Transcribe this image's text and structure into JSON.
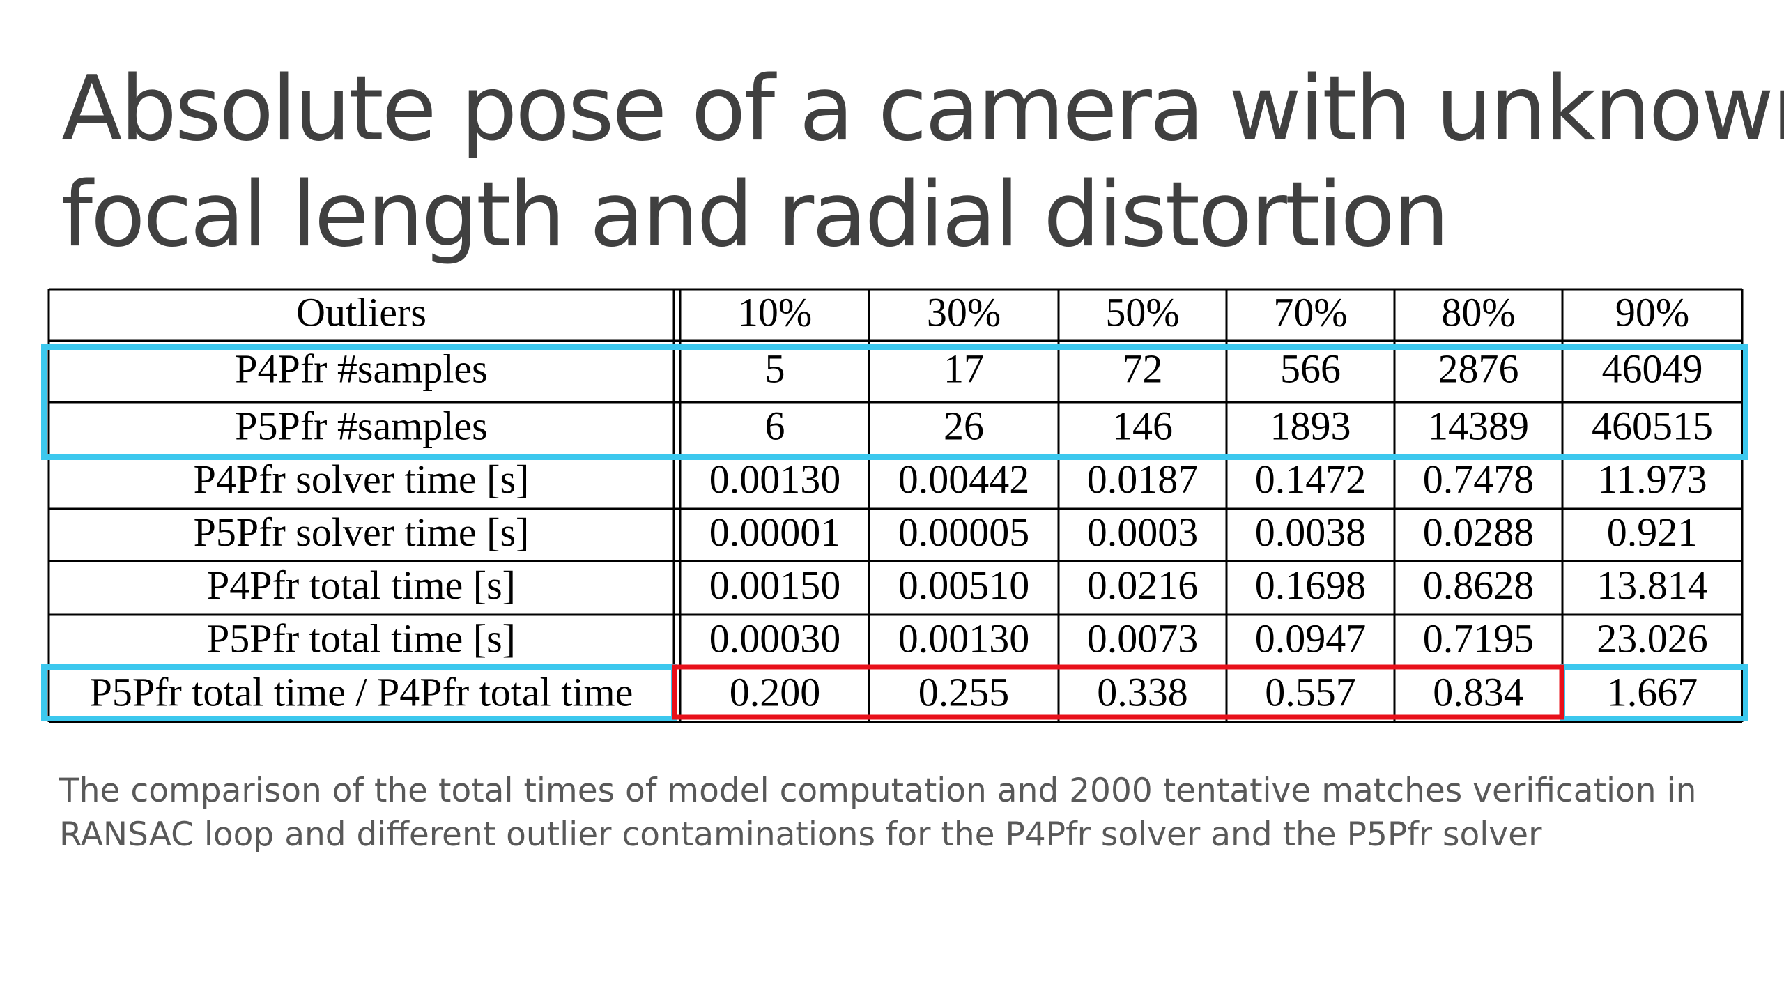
{
  "header": {
    "title_lines": [
      "Absolute pose of a camera with unknown",
      "focal length and radial distortion"
    ]
  },
  "table": {
    "header": [
      "Outliers",
      "10%",
      "30%",
      "50%",
      "70%",
      "80%",
      "90%"
    ],
    "rows": [
      [
        "P4Pfr #samples",
        "5",
        "17",
        "72",
        "566",
        "2876",
        "46049"
      ],
      [
        "P5Pfr #samples",
        "6",
        "26",
        "146",
        "1893",
        "14389",
        "460515"
      ],
      [
        "P4Pfr solver time [s]",
        "0.00130",
        "0.00442",
        "0.0187",
        "0.1472",
        "0.7478",
        "11.973"
      ],
      [
        "P5Pfr solver time [s]",
        "0.00001",
        "0.00005",
        "0.0003",
        "0.0038",
        "0.0288",
        "0.921"
      ],
      [
        "P4Pfr total time [s]",
        "0.00150",
        "0.00510",
        "0.0216",
        "0.1698",
        "0.8628",
        "13.814"
      ],
      [
        "P5Pfr total time [s]",
        "0.00030",
        "0.00130",
        "0.0073",
        "0.0947",
        "0.7195",
        "23.026"
      ],
      [
        "P5Pfr total time / P4Pfr total time",
        "0.200",
        "0.255",
        "0.338",
        "0.557",
        "0.834",
        "1.667"
      ]
    ]
  },
  "caption_lines": [
    "The comparison of the total times of model computation and 2000 tentative matches verification in",
    "RANSAC loop and different outlier contaminations for the P4Pfr solver and the P5Pfr solver"
  ]
}
